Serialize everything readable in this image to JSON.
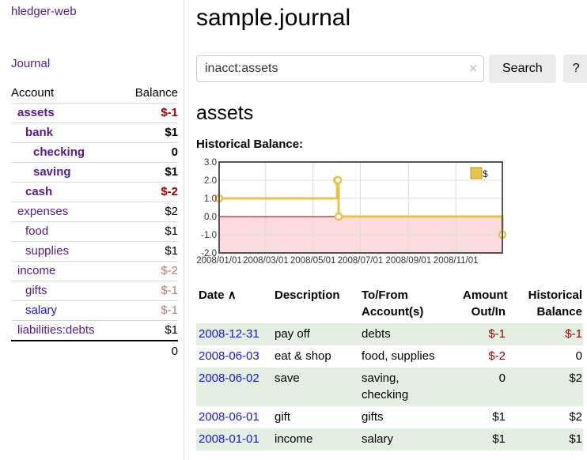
{
  "brand": "hledger-web",
  "nav": {
    "journal": "Journal"
  },
  "colors": {
    "link_purple": "#551A8B",
    "link_blue": "#1515dd",
    "negative_strong": "#a40000",
    "negative_dim": "#c27878",
    "row_stripe_green": "#e3efe3"
  },
  "sidebar": {
    "header": {
      "account": "Account",
      "balance": "Balance"
    },
    "rows": [
      {
        "name": "assets",
        "balance": "$-1",
        "depth": 0,
        "bold": true,
        "neg": "strong"
      },
      {
        "name": "bank",
        "balance": "$1",
        "depth": 1,
        "bold": true
      },
      {
        "name": "checking",
        "balance": "0",
        "depth": 2,
        "bold": true
      },
      {
        "name": "saving",
        "balance": "$1",
        "depth": 2,
        "bold": true
      },
      {
        "name": "cash",
        "balance": "$-2",
        "depth": 1,
        "bold": true,
        "neg": "strong"
      },
      {
        "name": "expenses",
        "balance": "$2",
        "depth": 0
      },
      {
        "name": "food",
        "balance": "$1",
        "depth": 1
      },
      {
        "name": "supplies",
        "balance": "$1",
        "depth": 1
      },
      {
        "name": "income",
        "balance": "$-2",
        "depth": 0,
        "neg": "dim"
      },
      {
        "name": "gifts",
        "balance": "$-1",
        "depth": 1,
        "neg": "dim"
      },
      {
        "name": "salary",
        "balance": "$-1",
        "depth": 1,
        "neg": "dim",
        "blue": true
      },
      {
        "name": "liabilities:debts",
        "balance": "$1",
        "depth": 0
      }
    ],
    "total": "0"
  },
  "main": {
    "title": "sample.journal",
    "search": {
      "value": "inacct:assets",
      "clear_glyph": "×",
      "search_label": "Search",
      "help_label": "?"
    },
    "account_title": "assets",
    "chart_title": "Historical Balance:"
  },
  "chart_data": {
    "type": "line",
    "step": true,
    "title": "Historical Balance",
    "legend": [
      {
        "label": "$",
        "color": "#e9c24a"
      }
    ],
    "legend_position": "top-right",
    "x": [
      "2008-01-01",
      "2008-06-01",
      "2008-06-02",
      "2008-06-03",
      "2008-12-31"
    ],
    "values": [
      1,
      2,
      2,
      0,
      -1
    ],
    "xrange": [
      "2008-01-01",
      "2008-12-31"
    ],
    "ylim": [
      -2,
      3
    ],
    "yticks": [
      {
        "v": 3,
        "label": "3.0"
      },
      {
        "v": 2,
        "label": "2.0"
      },
      {
        "v": 1,
        "label": "1.0"
      },
      {
        "v": 0,
        "label": "0.0"
      },
      {
        "v": -1,
        "label": "-1.0"
      },
      {
        "v": -2,
        "label": "-2.0"
      }
    ],
    "xticks": [
      {
        "date": "2008-01-01",
        "label": "2008/01/01"
      },
      {
        "date": "2008-03-01",
        "label": "2008/03/01"
      },
      {
        "date": "2008-05-01",
        "label": "2008/05/01"
      },
      {
        "date": "2008-07-01",
        "label": "2008/07/01"
      },
      {
        "date": "2008-09-01",
        "label": "2008/09/01"
      },
      {
        "date": "2008-11-01",
        "label": "2008/11/01"
      }
    ],
    "grid": true,
    "colors": {
      "line": "#e9c24a",
      "marker_fill": "#ffffff",
      "negative_region": "#fbdbdb",
      "zero_line": "#8b0000",
      "grid": "#dddddd",
      "border": "#555555",
      "tick_text": "#333333"
    }
  },
  "register": {
    "header": {
      "date": "Date",
      "sort_icon": "∧",
      "description": "Description",
      "accounts": "To/From Account(s)",
      "amount": "Amount Out/In",
      "balance": "Historical Balance"
    },
    "rows": [
      {
        "date": "2008-12-31",
        "description": "pay off",
        "accounts": "debts",
        "amount": "$-1",
        "amount_neg": true,
        "balance": "$-1",
        "balance_neg": true,
        "stripe": true
      },
      {
        "date": "2008-06-03",
        "description": "eat & shop",
        "accounts": "food, supplies",
        "amount": "$-2",
        "amount_neg": true,
        "balance": "0",
        "stripe": false
      },
      {
        "date": "2008-06-02",
        "description": "save",
        "accounts": "saving,\nchecking",
        "amount": "0",
        "balance": "$2",
        "stripe": true
      },
      {
        "date": "2008-06-01",
        "description": "gift",
        "accounts": "gifts",
        "amount": "$1",
        "balance": "$2",
        "stripe": false
      },
      {
        "date": "2008-01-01",
        "description": "income",
        "accounts": "salary",
        "amount": "$1",
        "balance": "$1",
        "stripe": true
      }
    ]
  }
}
